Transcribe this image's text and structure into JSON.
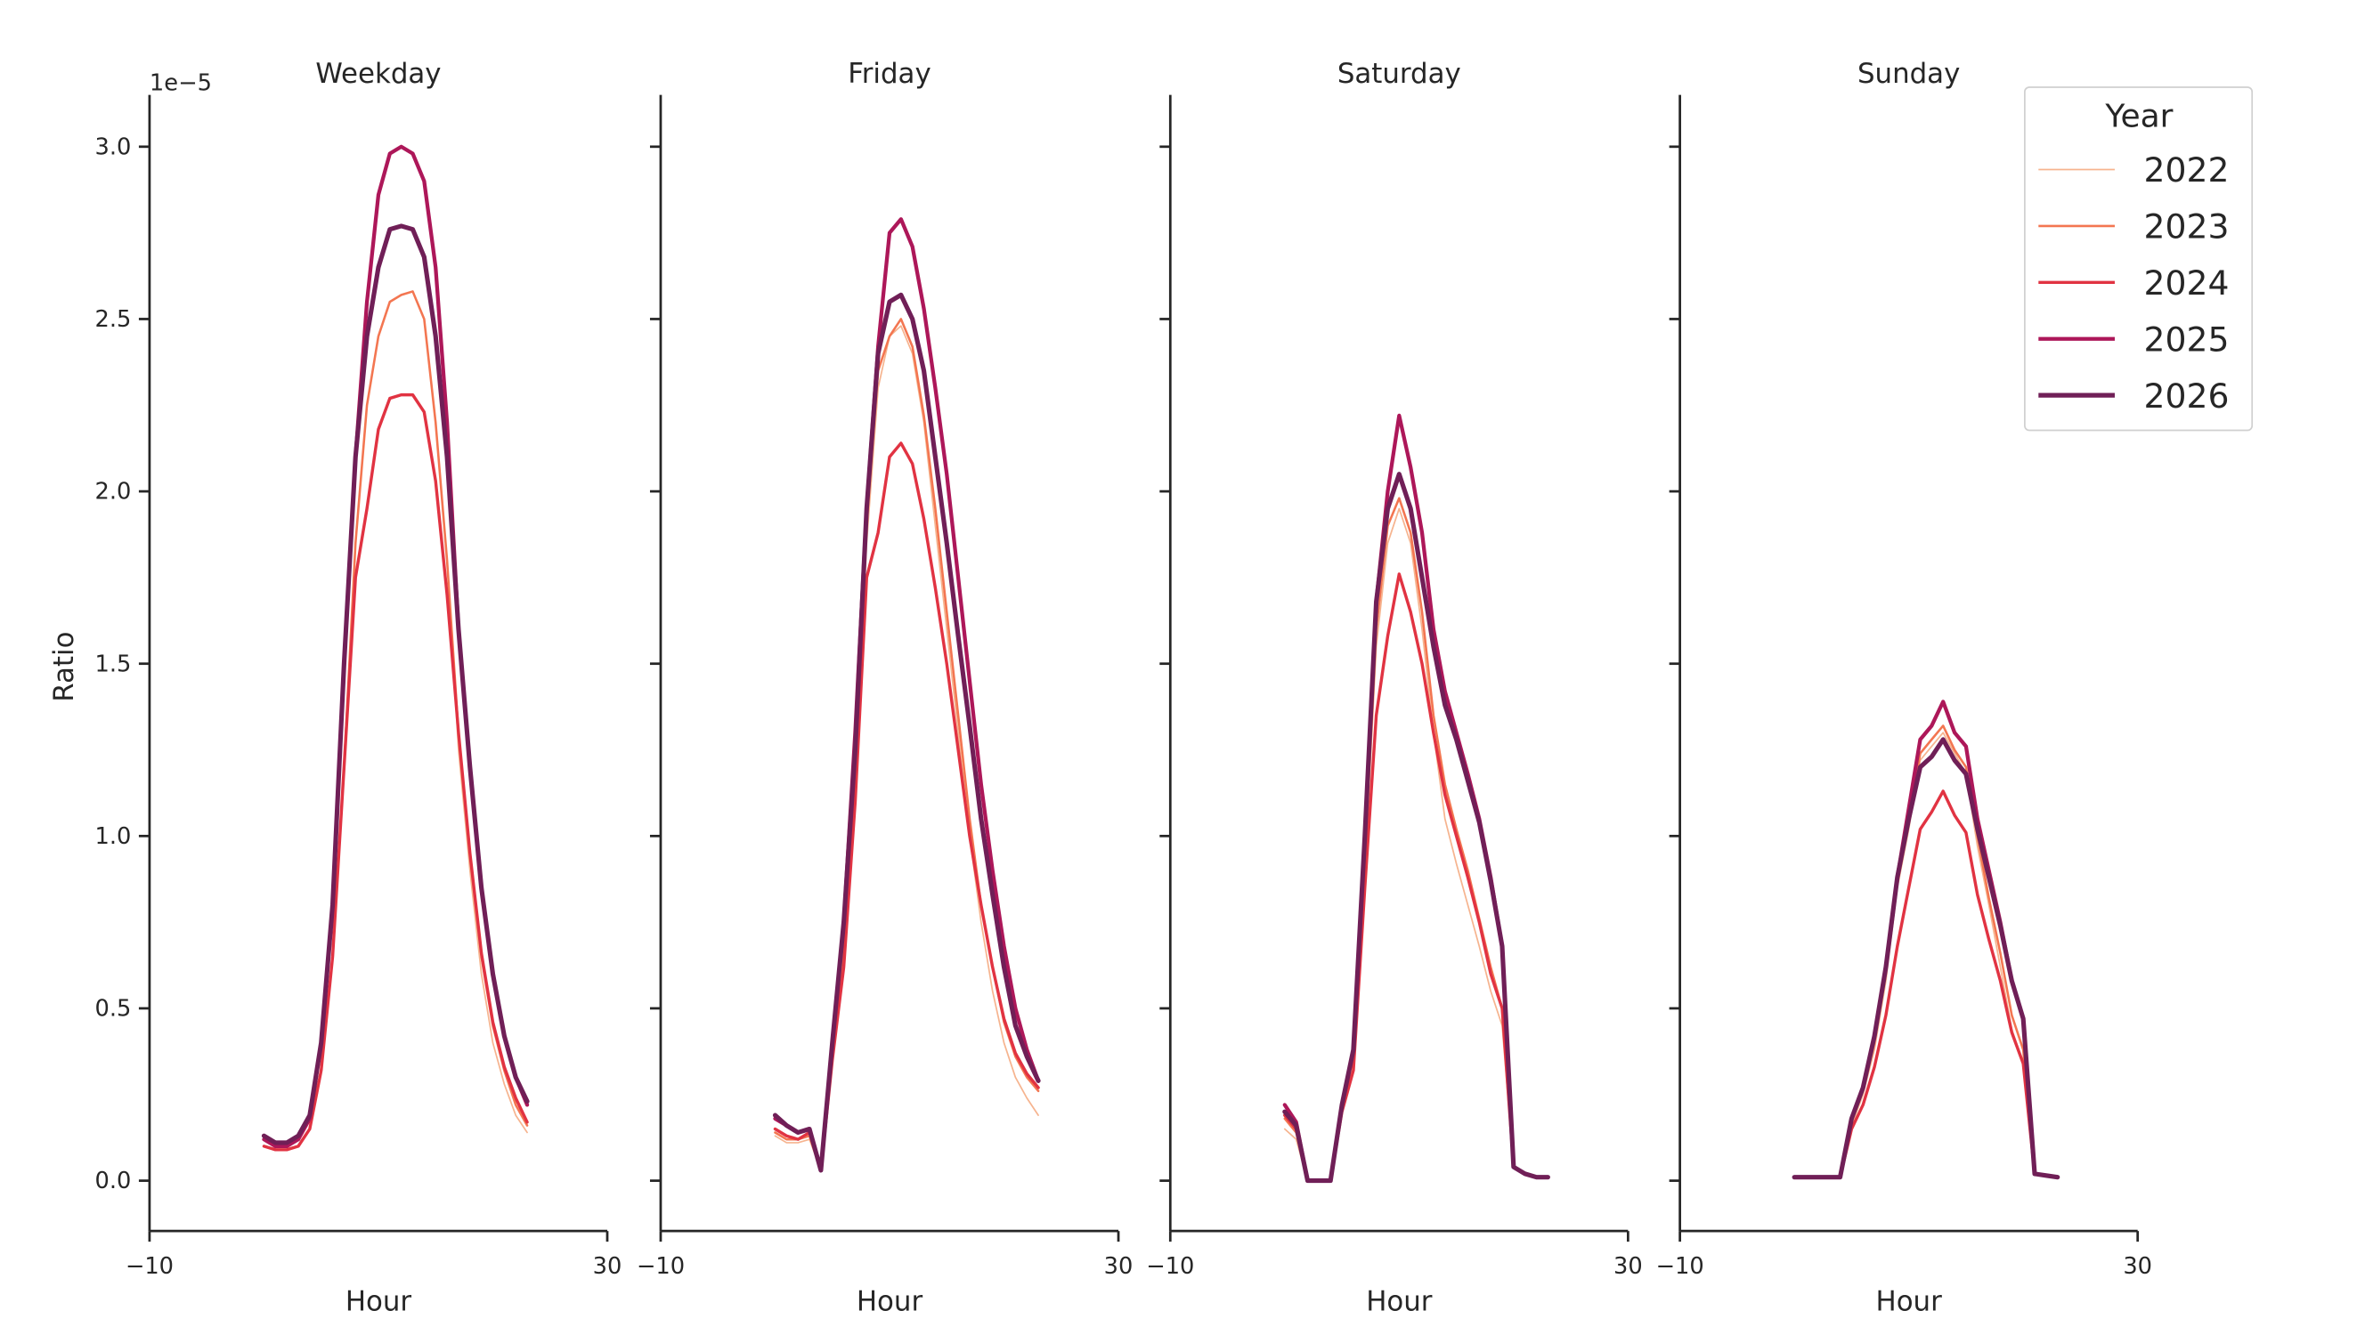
{
  "chart_data": {
    "type": "line",
    "ylabel": "Ratio",
    "offset_text": "1e−5",
    "xlabel": "Hour",
    "xlim": [
      -10,
      30
    ],
    "xticks": [
      "−10",
      "30"
    ],
    "ylim": [
      -0.15,
      3.15
    ],
    "yticks": [
      "0.0",
      "0.5",
      "1.0",
      "1.5",
      "2.0",
      "2.5",
      "3.0"
    ],
    "grid": false,
    "legend": {
      "title": "Year",
      "placement": "top-right"
    },
    "colors": {
      "2022": "#f6b48f",
      "2023": "#f37651",
      "2024": "#e13342",
      "2025": "#ad1759",
      "2026": "#701f57"
    },
    "x": [
      0,
      1,
      2,
      3,
      4,
      5,
      6,
      7,
      8,
      9,
      10,
      11,
      12,
      13,
      14,
      15,
      16,
      17,
      18,
      19,
      20,
      21,
      22,
      23
    ],
    "panels": [
      {
        "title": "Weekday",
        "series": [
          {
            "name": "2022",
            "values": [
              0.1,
              0.09,
              0.09,
              0.1,
              0.15,
              0.32,
              0.65,
              1.2,
              1.85,
              2.25,
              2.45,
              2.55,
              2.57,
              2.58,
              2.5,
              2.2,
              1.8,
              1.25,
              0.9,
              0.6,
              0.4,
              0.28,
              0.19,
              0.14
            ]
          },
          {
            "name": "2023",
            "values": [
              0.1,
              0.09,
              0.09,
              0.1,
              0.15,
              0.32,
              0.65,
              1.2,
              1.85,
              2.25,
              2.45,
              2.55,
              2.57,
              2.58,
              2.5,
              2.2,
              1.8,
              1.3,
              0.95,
              0.65,
              0.45,
              0.32,
              0.22,
              0.16
            ]
          },
          {
            "name": "2024",
            "values": [
              0.1,
              0.09,
              0.09,
              0.1,
              0.15,
              0.32,
              0.65,
              1.2,
              1.75,
              1.95,
              2.18,
              2.27,
              2.28,
              2.28,
              2.23,
              2.03,
              1.7,
              1.3,
              0.95,
              0.66,
              0.46,
              0.33,
              0.24,
              0.17
            ]
          },
          {
            "name": "2025",
            "values": [
              0.12,
              0.1,
              0.1,
              0.12,
              0.18,
              0.4,
              0.8,
              1.5,
              2.1,
              2.55,
              2.86,
              2.98,
              3.0,
              2.98,
              2.9,
              2.65,
              2.2,
              1.6,
              1.2,
              0.85,
              0.6,
              0.42,
              0.3,
              0.22
            ]
          },
          {
            "name": "2026",
            "values": [
              0.13,
              0.11,
              0.11,
              0.13,
              0.19,
              0.4,
              0.8,
              1.5,
              2.1,
              2.45,
              2.65,
              2.76,
              2.77,
              2.76,
              2.68,
              2.45,
              2.1,
              1.6,
              1.2,
              0.85,
              0.6,
              0.42,
              0.3,
              0.23
            ]
          }
        ]
      },
      {
        "title": "Friday",
        "series": [
          {
            "name": "2022",
            "values": [
              0.13,
              0.11,
              0.11,
              0.12,
              0.03,
              0.35,
              0.65,
              1.15,
              1.85,
              2.3,
              2.45,
              2.48,
              2.4,
              2.2,
              1.9,
              1.6,
              1.3,
              1.0,
              0.75,
              0.55,
              0.4,
              0.3,
              0.24,
              0.19
            ]
          },
          {
            "name": "2023",
            "values": [
              0.14,
              0.12,
              0.12,
              0.13,
              0.03,
              0.36,
              0.67,
              1.2,
              1.9,
              2.35,
              2.45,
              2.5,
              2.42,
              2.22,
              1.95,
              1.65,
              1.35,
              1.05,
              0.8,
              0.62,
              0.46,
              0.36,
              0.3,
              0.26
            ]
          },
          {
            "name": "2024",
            "values": [
              0.15,
              0.13,
              0.12,
              0.14,
              0.03,
              0.35,
              0.62,
              1.1,
              1.75,
              1.88,
              2.1,
              2.14,
              2.08,
              1.92,
              1.72,
              1.5,
              1.25,
              1.0,
              0.8,
              0.62,
              0.47,
              0.37,
              0.31,
              0.27
            ]
          },
          {
            "name": "2025",
            "values": [
              0.18,
              0.16,
              0.14,
              0.15,
              0.03,
              0.4,
              0.75,
              1.3,
              1.95,
              2.42,
              2.75,
              2.79,
              2.71,
              2.53,
              2.3,
              2.05,
              1.75,
              1.45,
              1.15,
              0.9,
              0.68,
              0.5,
              0.38,
              0.29
            ]
          },
          {
            "name": "2026",
            "values": [
              0.19,
              0.16,
              0.14,
              0.15,
              0.03,
              0.4,
              0.75,
              1.25,
              1.95,
              2.4,
              2.55,
              2.57,
              2.5,
              2.35,
              2.1,
              1.85,
              1.58,
              1.32,
              1.05,
              0.83,
              0.62,
              0.45,
              0.36,
              0.29
            ]
          }
        ]
      },
      {
        "title": "Saturday",
        "series": [
          {
            "name": "2022",
            "values": [
              0.15,
              0.12,
              0.0,
              0.0,
              0.0,
              0.2,
              0.35,
              0.9,
              1.55,
              1.85,
              1.95,
              1.85,
              1.6,
              1.3,
              1.05,
              0.92,
              0.8,
              0.68,
              0.55,
              0.45,
              0.04,
              0.02,
              0.01,
              0.01
            ]
          },
          {
            "name": "2023",
            "values": [
              0.18,
              0.14,
              0.0,
              0.0,
              0.0,
              0.21,
              0.36,
              0.92,
              1.6,
              1.9,
              1.98,
              1.88,
              1.65,
              1.35,
              1.15,
              1.02,
              0.9,
              0.76,
              0.62,
              0.5,
              0.04,
              0.02,
              0.01,
              0.01
            ]
          },
          {
            "name": "2024",
            "values": [
              0.19,
              0.15,
              0.0,
              0.0,
              0.0,
              0.2,
              0.32,
              0.85,
              1.35,
              1.58,
              1.76,
              1.65,
              1.5,
              1.3,
              1.12,
              1.0,
              0.88,
              0.75,
              0.6,
              0.5,
              0.04,
              0.02,
              0.01,
              0.01
            ]
          },
          {
            "name": "2025",
            "values": [
              0.22,
              0.17,
              0.0,
              0.0,
              0.0,
              0.22,
              0.38,
              1.0,
              1.68,
              2.0,
              2.22,
              2.07,
              1.88,
              1.6,
              1.42,
              1.3,
              1.18,
              1.05,
              0.88,
              0.68,
              0.04,
              0.02,
              0.01,
              0.01
            ]
          },
          {
            "name": "2026",
            "values": [
              0.2,
              0.16,
              0.0,
              0.0,
              0.0,
              0.22,
              0.38,
              1.0,
              1.68,
              1.95,
              2.05,
              1.95,
              1.75,
              1.55,
              1.38,
              1.28,
              1.16,
              1.04,
              0.87,
              0.68,
              0.04,
              0.02,
              0.01,
              0.01
            ]
          }
        ]
      },
      {
        "title": "Sunday",
        "series": [
          {
            "name": "2022",
            "values": [
              0.01,
              0.01,
              0.01,
              0.01,
              0.01,
              0.16,
              0.25,
              0.38,
              0.58,
              0.85,
              1.02,
              1.22,
              1.26,
              1.3,
              1.24,
              1.18,
              0.97,
              0.8,
              0.62,
              0.44,
              0.34,
              0.02,
              0.015,
              0.01
            ]
          },
          {
            "name": "2023",
            "values": [
              0.01,
              0.01,
              0.01,
              0.01,
              0.01,
              0.17,
              0.26,
              0.4,
              0.6,
              0.86,
              1.04,
              1.24,
              1.28,
              1.32,
              1.25,
              1.2,
              1.0,
              0.82,
              0.66,
              0.48,
              0.38,
              0.02,
              0.015,
              0.01
            ]
          },
          {
            "name": "2024",
            "values": [
              0.01,
              0.01,
              0.01,
              0.01,
              0.01,
              0.15,
              0.22,
              0.33,
              0.48,
              0.68,
              0.85,
              1.02,
              1.07,
              1.13,
              1.06,
              1.01,
              0.83,
              0.7,
              0.58,
              0.43,
              0.34,
              0.02,
              0.015,
              0.01
            ]
          },
          {
            "name": "2025",
            "values": [
              0.01,
              0.01,
              0.01,
              0.01,
              0.01,
              0.18,
              0.27,
              0.42,
              0.62,
              0.88,
              1.08,
              1.28,
              1.32,
              1.39,
              1.3,
              1.26,
              1.05,
              0.9,
              0.75,
              0.58,
              0.47,
              0.02,
              0.015,
              0.01
            ]
          },
          {
            "name": "2026",
            "values": [
              0.01,
              0.01,
              0.01,
              0.01,
              0.01,
              0.18,
              0.27,
              0.42,
              0.62,
              0.88,
              1.05,
              1.2,
              1.23,
              1.28,
              1.22,
              1.18,
              1.02,
              0.88,
              0.74,
              0.58,
              0.47,
              0.02,
              0.015,
              0.01
            ]
          }
        ]
      }
    ]
  }
}
